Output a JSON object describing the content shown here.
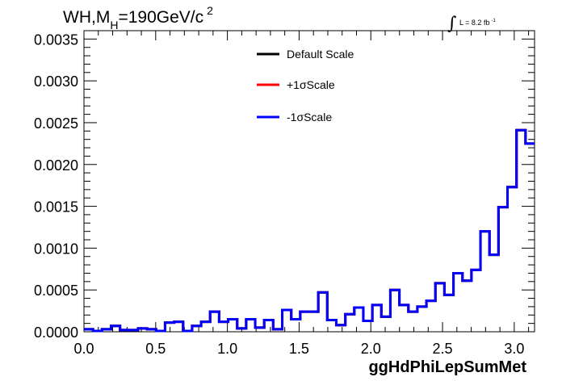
{
  "title": {
    "prefix": "WH,M",
    "subscript": "H",
    "value": "=190GeV/c",
    "superscript": "2"
  },
  "lumi": {
    "integral": "∫",
    "text": "L = 8.2 fb",
    "superscript": "-1"
  },
  "chart_data": {
    "type": "line",
    "xlabel": "ggHdPhiLepSumMet",
    "ylabel": "",
    "xlim": [
      0,
      3.1416
    ],
    "ylim": [
      0,
      0.0036
    ],
    "xticks": [
      "0.0",
      "0.5",
      "1.0",
      "1.5",
      "2.0",
      "2.5",
      "3.0"
    ],
    "xtick_values": [
      0,
      0.5,
      1.0,
      1.5,
      2.0,
      2.5,
      3.0
    ],
    "yticks": [
      "0.0000",
      "0.0005",
      "0.0010",
      "0.0015",
      "0.0020",
      "0.0025",
      "0.0030",
      "0.0035"
    ],
    "ytick_values": [
      0,
      0.0005,
      0.001,
      0.0015,
      0.002,
      0.0025,
      0.003,
      0.0035
    ],
    "bin_edges_range": [
      0,
      3.1416
    ],
    "n_bins": 50,
    "legend_position": "top-center",
    "grid": false,
    "series": [
      {
        "name": "Default Scale",
        "color": "#000000",
        "values": [
          3e-05,
          1e-05,
          3e-05,
          7e-05,
          2e-05,
          2e-05,
          4e-05,
          3e-05,
          1e-05,
          0.00011,
          0.00012,
          1e-05,
          7e-05,
          0.00012,
          0.00024,
          0.00012,
          0.00015,
          4e-05,
          0.00015,
          5e-05,
          0.00014,
          3e-05,
          0.00026,
          0.00015,
          0.00024,
          0.00024,
          0.00047,
          0.00014,
          8e-05,
          0.00021,
          0.00029,
          0.00013,
          0.00032,
          0.00018,
          0.0005,
          0.00032,
          0.00024,
          0.0003,
          0.00037,
          0.00058,
          0.00044,
          0.0007,
          0.00061,
          0.00074,
          0.0012,
          0.00092,
          0.00149,
          0.00173,
          0.00241,
          0.00225
        ]
      },
      {
        "name": "+1σScale",
        "color": "#ff0000",
        "values": [
          3e-05,
          1e-05,
          3e-05,
          7e-05,
          2e-05,
          2e-05,
          4e-05,
          3e-05,
          1e-05,
          0.00011,
          0.00012,
          1e-05,
          7e-05,
          0.00012,
          0.00024,
          0.00012,
          0.00015,
          4e-05,
          0.00015,
          5e-05,
          0.00014,
          3e-05,
          0.00026,
          0.00015,
          0.00024,
          0.00024,
          0.00047,
          0.00014,
          8e-05,
          0.00021,
          0.00029,
          0.00013,
          0.00032,
          0.00018,
          0.0005,
          0.00032,
          0.00024,
          0.0003,
          0.00037,
          0.00058,
          0.00044,
          0.0007,
          0.00061,
          0.00074,
          0.0012,
          0.00092,
          0.00149,
          0.00173,
          0.00241,
          0.00225
        ]
      },
      {
        "name": "-1σScale",
        "color": "#0000ff",
        "values": [
          3e-05,
          1e-05,
          3e-05,
          7e-05,
          2e-05,
          2e-05,
          4e-05,
          3e-05,
          1e-05,
          0.00011,
          0.00012,
          1e-05,
          7e-05,
          0.00012,
          0.00024,
          0.00012,
          0.00015,
          4e-05,
          0.00015,
          5e-05,
          0.00014,
          3e-05,
          0.00026,
          0.00015,
          0.00024,
          0.00024,
          0.00047,
          0.00014,
          8e-05,
          0.00021,
          0.00029,
          0.00013,
          0.00032,
          0.00018,
          0.0005,
          0.00032,
          0.00024,
          0.0003,
          0.00037,
          0.00058,
          0.00044,
          0.0007,
          0.00061,
          0.00074,
          0.0012,
          0.00092,
          0.00149,
          0.00173,
          0.00241,
          0.00225
        ]
      }
    ]
  }
}
